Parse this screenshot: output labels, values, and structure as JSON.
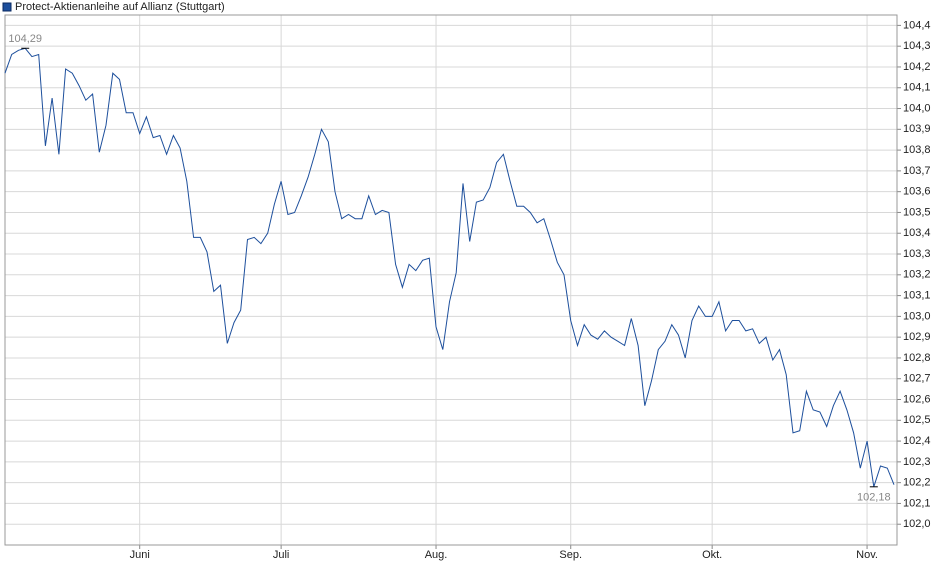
{
  "chart_data": {
    "type": "line",
    "title": "Protect-Aktienanleihe auf Allianz  (Stuttgart)",
    "series": [
      {
        "name": "Protect-Aktienanleihe auf Allianz  (Stuttgart)",
        "color": "#1d4f9c",
        "values": [
          104.17,
          104.26,
          104.28,
          104.29,
          104.25,
          104.26,
          103.82,
          104.05,
          103.78,
          104.19,
          104.17,
          104.11,
          104.04,
          104.07,
          103.79,
          103.92,
          104.17,
          104.14,
          103.98,
          103.98,
          103.88,
          103.96,
          103.86,
          103.87,
          103.78,
          103.87,
          103.81,
          103.65,
          103.38,
          103.38,
          103.31,
          103.12,
          103.15,
          102.87,
          102.97,
          103.03,
          103.37,
          103.38,
          103.35,
          103.4,
          103.54,
          103.65,
          103.49,
          103.5,
          103.58,
          103.67,
          103.78,
          103.9,
          103.84,
          103.6,
          103.47,
          103.49,
          103.47,
          103.47,
          103.58,
          103.49,
          103.51,
          103.5,
          103.25,
          103.14,
          103.25,
          103.22,
          103.27,
          103.28,
          102.95,
          102.84,
          103.07,
          103.21,
          103.64,
          103.36,
          103.55,
          103.56,
          103.62,
          103.74,
          103.78,
          103.65,
          103.53,
          103.53,
          103.5,
          103.45,
          103.47,
          103.37,
          103.26,
          103.2,
          102.98,
          102.86,
          102.96,
          102.91,
          102.89,
          102.93,
          102.9,
          102.88,
          102.86,
          102.99,
          102.86,
          102.57,
          102.69,
          102.84,
          102.88,
          102.96,
          102.91,
          102.8,
          102.98,
          103.05,
          103.0,
          103.0,
          103.07,
          102.93,
          102.98,
          102.98,
          102.93,
          102.94,
          102.87,
          102.9,
          102.79,
          102.84,
          102.72,
          102.44,
          102.45,
          102.64,
          102.55,
          102.54,
          102.47,
          102.57,
          102.64,
          102.55,
          102.44,
          102.27,
          102.4,
          102.18,
          102.28,
          102.27,
          102.19
        ]
      }
    ],
    "max_label": "104,29",
    "min_label": "102,18",
    "xlim": [
      0,
      132
    ],
    "xticks": [
      {
        "value": 20,
        "label": "Juni"
      },
      {
        "value": 41,
        "label": "Juli"
      },
      {
        "value": 64,
        "label": "Aug."
      },
      {
        "value": 84,
        "label": "Sep."
      },
      {
        "value": 105,
        "label": "Okt."
      },
      {
        "value": 128,
        "label": "Nov."
      }
    ],
    "ylim": [
      101.9,
      104.45
    ],
    "yticks": [
      {
        "value": 102.0,
        "label": "102,0"
      },
      {
        "value": 102.1,
        "label": "102,1"
      },
      {
        "value": 102.2,
        "label": "102,2"
      },
      {
        "value": 102.3,
        "label": "102,3"
      },
      {
        "value": 102.4,
        "label": "102,4"
      },
      {
        "value": 102.5,
        "label": "102,5"
      },
      {
        "value": 102.6,
        "label": "102,6"
      },
      {
        "value": 102.7,
        "label": "102,7"
      },
      {
        "value": 102.8,
        "label": "102,8"
      },
      {
        "value": 102.9,
        "label": "102,9"
      },
      {
        "value": 103.0,
        "label": "103,0"
      },
      {
        "value": 103.1,
        "label": "103,1"
      },
      {
        "value": 103.2,
        "label": "103,2"
      },
      {
        "value": 103.3,
        "label": "103,3"
      },
      {
        "value": 103.4,
        "label": "103,4"
      },
      {
        "value": 103.5,
        "label": "103,5"
      },
      {
        "value": 103.6,
        "label": "103,6"
      },
      {
        "value": 103.7,
        "label": "103,7"
      },
      {
        "value": 103.8,
        "label": "103,8"
      },
      {
        "value": 103.9,
        "label": "103,9"
      },
      {
        "value": 104.0,
        "label": "104,0"
      },
      {
        "value": 104.1,
        "label": "104,1"
      },
      {
        "value": 104.2,
        "label": "104,2"
      },
      {
        "value": 104.3,
        "label": "104,3"
      },
      {
        "value": 104.4,
        "label": "104,4"
      }
    ],
    "grid": true
  }
}
